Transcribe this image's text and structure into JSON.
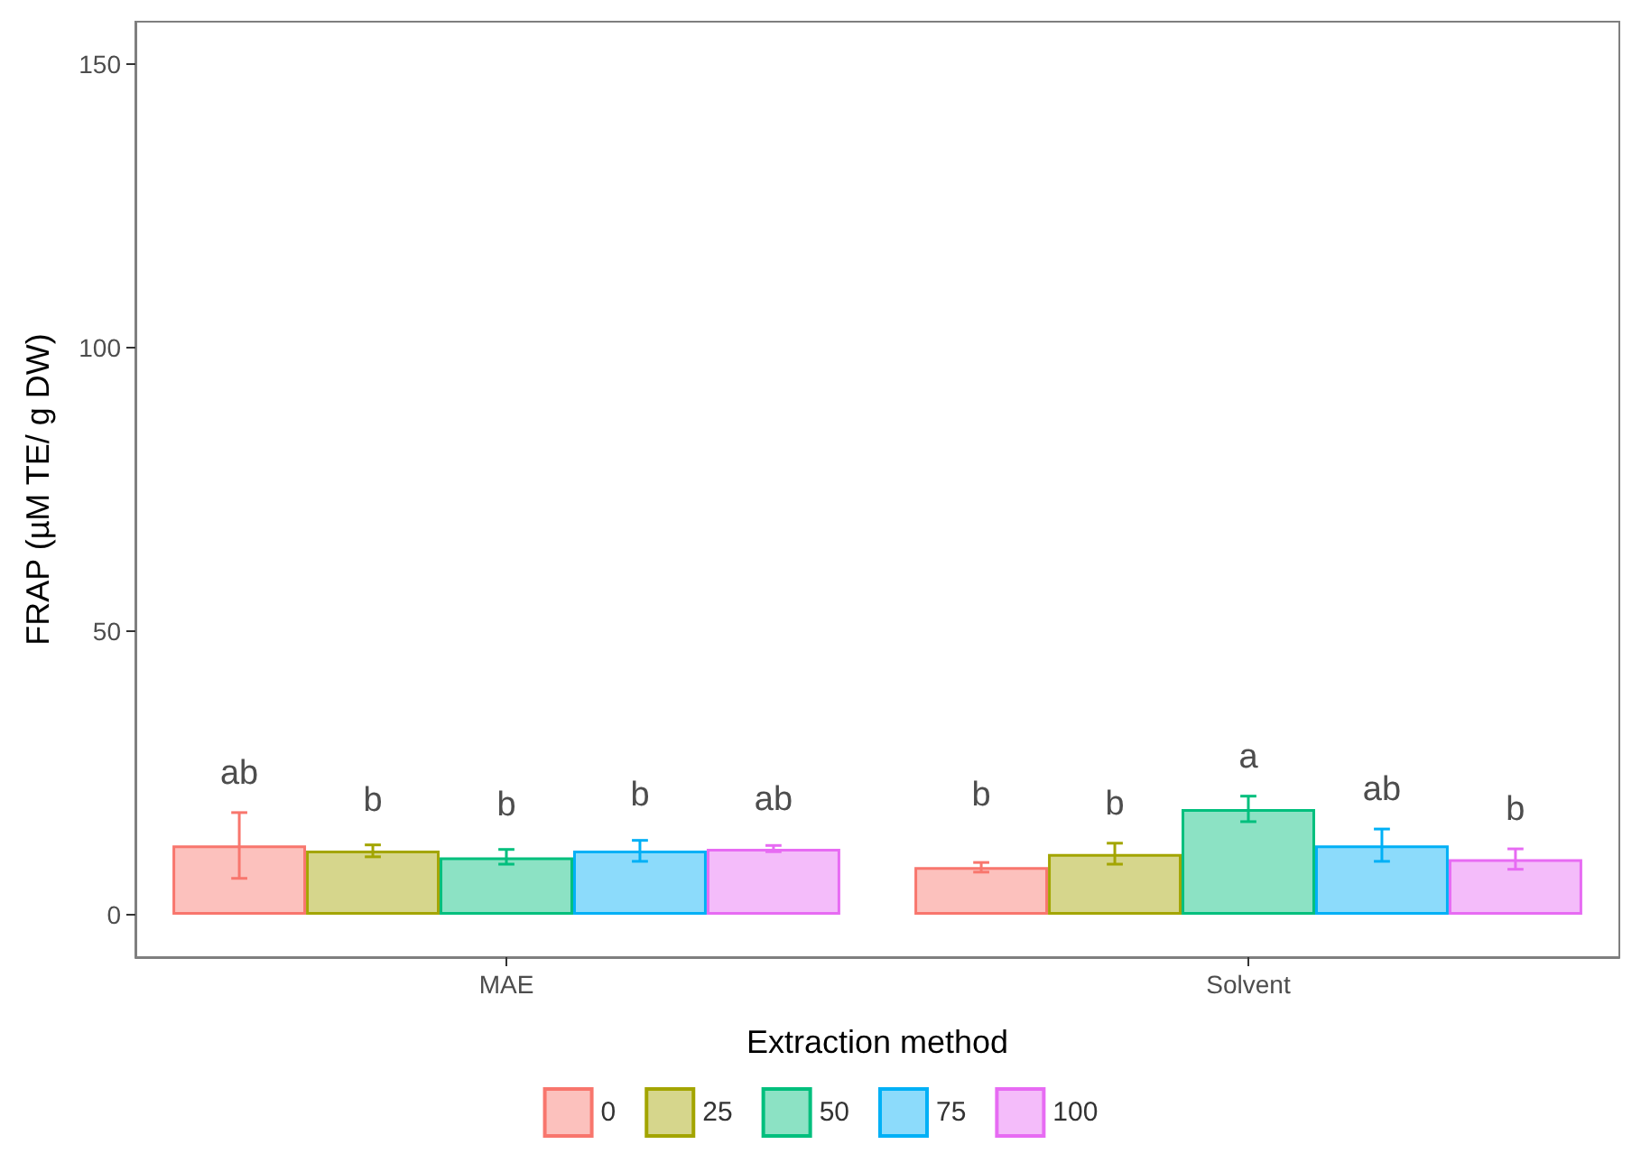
{
  "chart_data": {
    "type": "bar",
    "xlabel": "Extraction method",
    "ylabel": "FRAP (µM TE/ g DW)",
    "categories": [
      "MAE",
      "Solvent"
    ],
    "series": [
      {
        "name": "0",
        "color": "#f8766d",
        "values": [
          12.2,
          8.4
        ],
        "errors": [
          [
            6.4,
            18.0
          ],
          [
            7.5,
            9.2
          ]
        ],
        "value_labels": [
          "ab",
          "b"
        ]
      },
      {
        "name": "25",
        "color": "#a3a500",
        "values": [
          11.3,
          10.7
        ],
        "errors": [
          [
            10.2,
            12.3
          ],
          [
            8.9,
            12.6
          ]
        ],
        "value_labels": [
          "b",
          "b"
        ]
      },
      {
        "name": "50",
        "color": "#00bf7d",
        "values": [
          10.1,
          18.6
        ],
        "errors": [
          [
            8.9,
            11.5
          ],
          [
            16.4,
            20.9
          ]
        ],
        "value_labels": [
          "b",
          "a"
        ]
      },
      {
        "name": "75",
        "color": "#00b0f6",
        "values": [
          11.3,
          12.2
        ],
        "errors": [
          [
            9.4,
            13.1
          ],
          [
            9.4,
            15.1
          ]
        ],
        "value_labels": [
          "b",
          "ab"
        ]
      },
      {
        "name": "100",
        "color": "#e76bf3",
        "values": [
          11.6,
          9.8
        ],
        "errors": [
          [
            11.1,
            12.2
          ],
          [
            8.0,
            11.6
          ]
        ],
        "value_labels": [
          "ab",
          "b"
        ]
      }
    ],
    "ylim": [
      -7.5,
      157.5
    ],
    "yticks": [
      0,
      50,
      100,
      150
    ],
    "grid": false,
    "legend": "bottom"
  }
}
